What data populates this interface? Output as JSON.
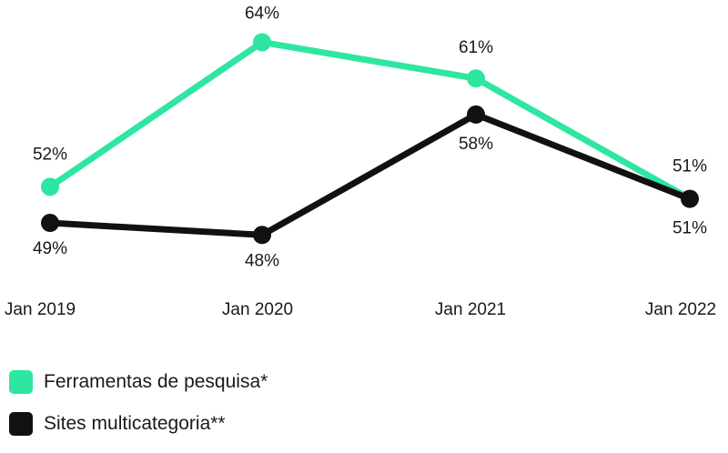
{
  "chart_data": {
    "type": "line",
    "categories": [
      "Jan 2019",
      "Jan 2020",
      "Jan 2021",
      "Jan 2022"
    ],
    "ylim": [
      45,
      66
    ],
    "grid": false,
    "legend_position": "bottom-left",
    "series": [
      {
        "name": "Ferramentas de pesquisa*",
        "color": "#2ee6a0",
        "values": [
          52,
          64,
          61,
          51
        ],
        "labels": [
          "52%",
          "64%",
          "61%",
          "51%"
        ],
        "label_side": "above"
      },
      {
        "name": "Sites multicategoria**",
        "color": "#111111",
        "values": [
          49,
          48,
          58,
          51
        ],
        "labels": [
          "49%",
          "48%",
          "58%",
          "51%"
        ],
        "label_side": "below"
      }
    ]
  }
}
